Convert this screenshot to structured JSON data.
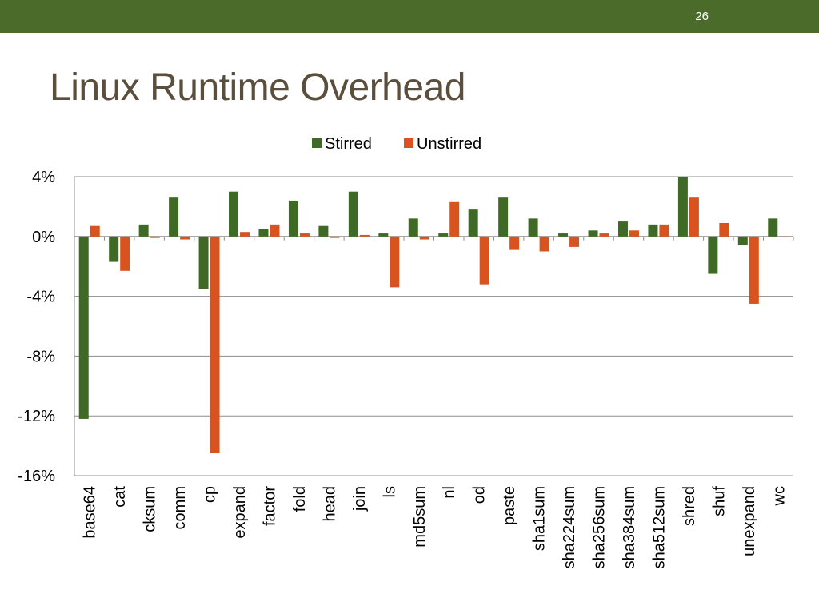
{
  "slide": {
    "number": "26",
    "title": "Linux Runtime Overhead",
    "accent_color": "#4a6b2a",
    "title_color": "#5a4e3c"
  },
  "chart_data": {
    "type": "bar",
    "categories": [
      "base64",
      "cat",
      "cksum",
      "comm",
      "cp",
      "expand",
      "factor",
      "fold",
      "head",
      "join",
      "ls",
      "md5sum",
      "nl",
      "od",
      "paste",
      "sha1sum",
      "sha224sum",
      "sha256sum",
      "sha384sum",
      "sha512sum",
      "shred",
      "shuf",
      "unexpand",
      "wc"
    ],
    "series": [
      {
        "name": "Stirred",
        "color": "#3f6a25",
        "values": [
          -12.2,
          -1.7,
          0.8,
          2.6,
          -3.5,
          3.0,
          0.5,
          2.4,
          0.7,
          3.0,
          0.2,
          1.2,
          0.2,
          1.8,
          2.6,
          1.2,
          0.2,
          0.4,
          1.0,
          0.8,
          4.0,
          -2.5,
          -0.6,
          1.2
        ]
      },
      {
        "name": "Unstirred",
        "color": "#d9531e",
        "values": [
          0.7,
          -2.3,
          -0.1,
          -0.2,
          -14.5,
          0.3,
          0.8,
          0.2,
          -0.1,
          0.1,
          -3.4,
          -0.2,
          2.3,
          -3.2,
          -0.9,
          -1.0,
          -0.7,
          0.2,
          0.4,
          0.8,
          2.6,
          0.9,
          -4.5,
          0.0
        ]
      }
    ],
    "yticks": [
      "4%",
      "0%",
      "-4%",
      "-8%",
      "-12%",
      "-16%"
    ],
    "ytick_values": [
      4,
      0,
      -4,
      -8,
      -12,
      -16
    ],
    "ylim": [
      -16,
      4
    ],
    "grid": true,
    "legend_position": "top-center",
    "title": "",
    "xlabel": "",
    "ylabel": ""
  }
}
